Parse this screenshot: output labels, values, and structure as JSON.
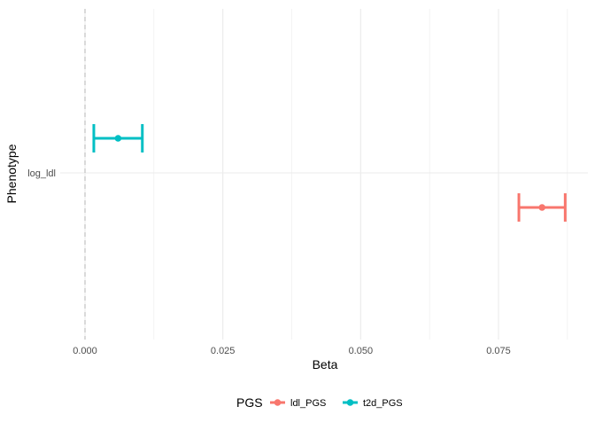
{
  "chart_data": {
    "type": "errorbar",
    "title": "",
    "xlabel": "Beta",
    "ylabel": "Phenotype",
    "xlim": [
      0.0,
      0.0915
    ],
    "x_ticks": [
      "0.000",
      "0.025",
      "0.050",
      "0.075"
    ],
    "x_tick_values": [
      0.0,
      0.025,
      0.05,
      0.075
    ],
    "categories": [
      "log_ldl"
    ],
    "reference_line": {
      "x": 0,
      "style": "dashed",
      "color": "#BEBEBE"
    },
    "grid": true,
    "legend": {
      "title": "PGS",
      "position": "bottom"
    },
    "series": [
      {
        "name": "ldl_PGS",
        "color": "#F8766D",
        "category": "log_ldl",
        "estimate": 0.0829,
        "lower": 0.0787,
        "upper": 0.0871
      },
      {
        "name": "t2d_PGS",
        "color": "#00BFC4",
        "category": "log_ldl",
        "estimate": 0.006,
        "lower": 0.0016,
        "upper": 0.0104
      }
    ]
  }
}
